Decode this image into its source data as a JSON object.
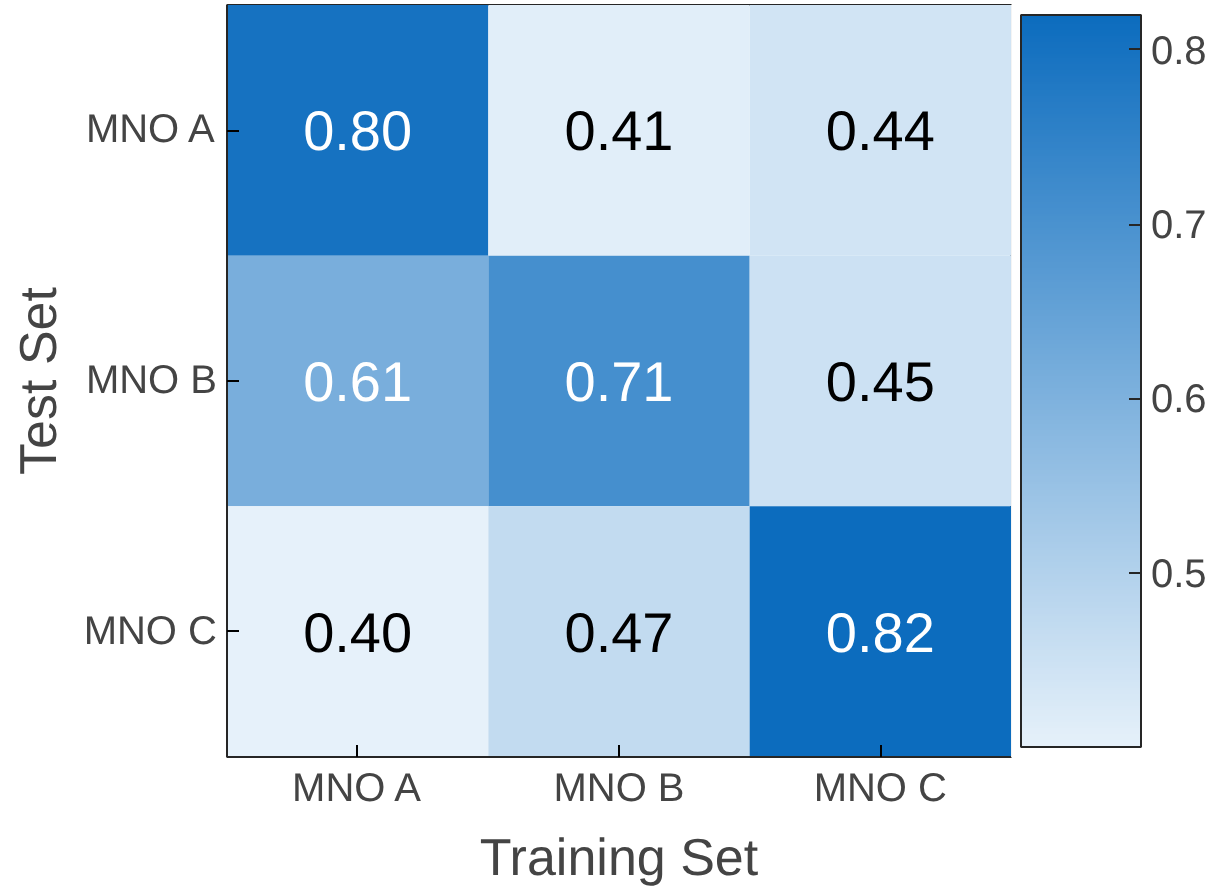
{
  "chart_data": {
    "type": "heatmap",
    "xlabel": "Training Set",
    "ylabel": "Test Set",
    "categories": [
      "MNO A",
      "MNO B",
      "MNO C"
    ],
    "y_categories": [
      "MNO A",
      "MNO B",
      "MNO C"
    ],
    "cells": [
      [
        0.8,
        0.41,
        0.44
      ],
      [
        0.61,
        0.71,
        0.45
      ],
      [
        0.4,
        0.47,
        0.82
      ]
    ],
    "cell_labels": [
      [
        "0.80",
        "0.41",
        "0.44"
      ],
      [
        "0.61",
        "0.71",
        "0.45"
      ],
      [
        "0.40",
        "0.47",
        "0.82"
      ]
    ],
    "clim": [
      0.4,
      0.82
    ],
    "cticks": [
      0.5,
      0.6,
      0.7,
      0.8
    ],
    "data_labels": true
  }
}
